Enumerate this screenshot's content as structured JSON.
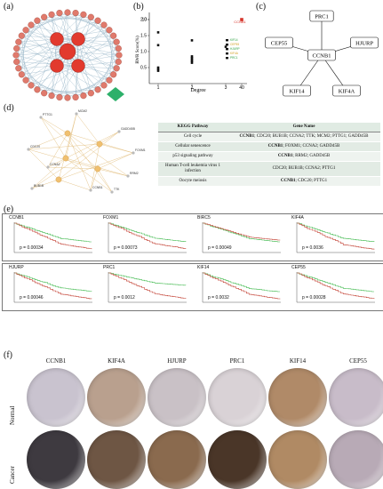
{
  "panel_labels": [
    "(a)",
    "(b)",
    "(c)",
    "(d)",
    "(e)",
    "(f)"
  ],
  "panel_a": {
    "description_nodes": [
      "CCNB1",
      "CDC20",
      "BUB1B",
      "KIF14",
      "CEP55",
      "MCM2",
      "PRC1",
      "HJURP",
      "FOXM1",
      "BIRC5",
      "KIF4A",
      "UBE2T"
    ],
    "node_colors": {
      "hub": "#e23a2e",
      "green": "#2db06a",
      "node": "#e07a6c"
    }
  },
  "panel_b": {
    "chart_data": {
      "type": "scatter",
      "xlabel": "Degree",
      "ylabel": "RWR Score(%)",
      "xticks": [
        "1",
        "2",
        "3",
        "40"
      ],
      "yticks": [
        "0.5",
        "1.0",
        "1.5",
        "2.0",
        "10"
      ],
      "annotation": "CCNB1",
      "points": [
        {
          "x": 1,
          "y": 1.6
        },
        {
          "x": 1,
          "y": 1.2
        },
        {
          "x": 1,
          "y": 0.5
        },
        {
          "x": 1,
          "y": 0.45
        },
        {
          "x": 1,
          "y": 0.4
        },
        {
          "x": 2,
          "y": 1.35
        },
        {
          "x": 2,
          "y": 0.85
        },
        {
          "x": 2,
          "y": 0.8
        },
        {
          "x": 2,
          "y": 0.75
        },
        {
          "x": 2,
          "y": 0.7
        },
        {
          "x": 2,
          "y": 0.65
        },
        {
          "x": 3,
          "y": 1.15
        },
        {
          "x": 40,
          "y": 10
        }
      ],
      "legend": [
        "KIF14",
        "CEP55",
        "HJURP",
        "KIF4A",
        "PRC1"
      ],
      "colors": {
        "point": "#111111",
        "highlight": "#d6342a"
      }
    }
  },
  "panel_c": {
    "center": "CCNB1",
    "nodes": [
      "PRC1",
      "HJURP",
      "KIF4A",
      "KIF14",
      "CEP55"
    ]
  },
  "panel_d": {
    "network_labels": [
      "PTTG1",
      "MCM2",
      "CDC20",
      "CCNA2",
      "GADD45B",
      "FOXM1",
      "RRM2",
      "BUB1B",
      "CCNB1",
      "TTK"
    ],
    "table": {
      "headers": [
        "KEGG Pathway",
        "Gene Name"
      ],
      "rows": [
        {
          "pathway": "Cell cycle",
          "bold": "CCNB1",
          "genes": "; CDC20; BUB1B; CCNA2; TTK; MCM2; PTTG1; GADD45B"
        },
        {
          "pathway": "Cellular senescence",
          "bold": "CCNB1",
          "genes": "; FOXM1; CCNA2; GADD45B"
        },
        {
          "pathway": "p53 signaling pathway",
          "bold": "CCNB1",
          "genes": "; RRM2; GADD45B"
        },
        {
          "pathway": "Human T-cell leukemia virus 1 infection",
          "bold": "",
          "genes": "CDC20; BUB1B; CCNA2; PTTG1"
        },
        {
          "pathway": "Oocyte meiosis",
          "bold": "CCNB1",
          "genes": "; CDC20; PTTG1"
        }
      ]
    }
  },
  "panel_e": {
    "plots": [
      {
        "gene": "CCNB1",
        "p": "p = 0.00034"
      },
      {
        "gene": "FOXM1",
        "p": "p = 0.00073"
      },
      {
        "gene": "BIRC5",
        "p": "p = 0.00049"
      },
      {
        "gene": "KIF4A",
        "p": "p = 0.0036"
      },
      {
        "gene": "HJURP",
        "p": "p = 0.00046"
      },
      {
        "gene": "PRC1",
        "p": "p = 0.0012"
      },
      {
        "gene": "KIF14",
        "p": "p = 0.0032"
      },
      {
        "gene": "CEP55",
        "p": "p = 0.00028"
      }
    ],
    "ylabel": "Survival probability",
    "xlabel": "Survival Days",
    "colors": {
      "low": "#3cb84a",
      "high": "#c0392b"
    }
  },
  "panel_f": {
    "genes": [
      "CCNB1",
      "KIF4A",
      "HJURP",
      "PRC1",
      "KIF14",
      "CEP55"
    ],
    "rows": [
      "Normal",
      "Cancer"
    ],
    "normal_colors": [
      "#c9c3cf",
      "#b9a08e",
      "#c9c1c6",
      "#d9d2d6",
      "#b08a68",
      "#c8bcc9"
    ],
    "cancer_colors": [
      "#3e3a40",
      "#6e5644",
      "#8a6a4e",
      "#4a3628",
      "#b08a64",
      "#b8aab6"
    ]
  }
}
